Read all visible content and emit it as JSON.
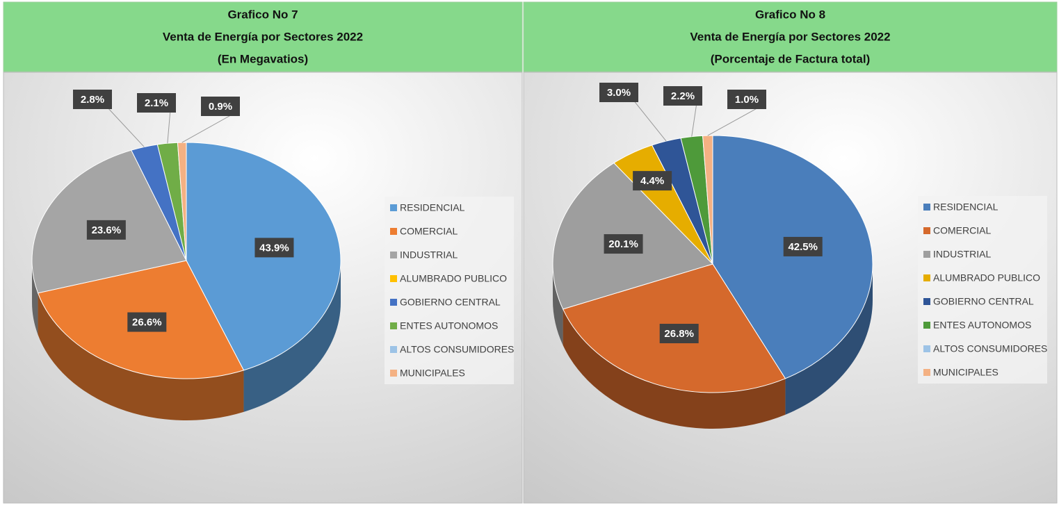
{
  "chart_data": [
    {
      "type": "pie",
      "title": [
        "Grafico No 7",
        "Venta de Energía por Sectores 2022",
        "(En Megavatios)"
      ],
      "categories": [
        "RESIDENCIAL",
        "COMERCIAL",
        "INDUSTRIAL",
        "ALUMBRADO PUBLICO",
        "GOBIERNO CENTRAL",
        "ENTES AUTONOMOS",
        "ALTOS CONSUMIDORES",
        "MUNICIPALES"
      ],
      "values": [
        43.9,
        26.6,
        23.6,
        null,
        2.8,
        2.1,
        null,
        0.9
      ],
      "value_labels": [
        "43.9%",
        "26.6%",
        "23.6%",
        null,
        "2.8%",
        "2.1%",
        null,
        "0.9%"
      ],
      "colors": [
        "#5b9bd5",
        "#ed7d31",
        "#a5a5a5",
        "#ffc000",
        "#4472c4",
        "#70ad47",
        "#9dc3e6",
        "#f4b183"
      ],
      "legend": "right"
    },
    {
      "type": "pie",
      "title": [
        "Grafico No 8",
        "Venta de Energía por Sectores 2022",
        "(Porcentaje de Factura total)"
      ],
      "categories": [
        "RESIDENCIAL",
        "COMERCIAL",
        "INDUSTRIAL",
        "ALUMBRADO PUBLICO",
        "GOBIERNO CENTRAL",
        "ENTES AUTONOMOS",
        "ALTOS CONSUMIDORES",
        "MUNICIPALES"
      ],
      "values": [
        42.5,
        26.8,
        20.1,
        4.4,
        3.0,
        2.2,
        null,
        1.0
      ],
      "value_labels": [
        "42.5%",
        "26.8%",
        "20.1%",
        "4.4%",
        "3.0%",
        "2.2%",
        null,
        "1.0%"
      ],
      "colors": [
        "#4a7ebb",
        "#d5692c",
        "#9e9e9e",
        "#e6ad00",
        "#2f5597",
        "#4e9a3a",
        "#9dc3e6",
        "#f4b183"
      ],
      "legend": "right"
    }
  ]
}
